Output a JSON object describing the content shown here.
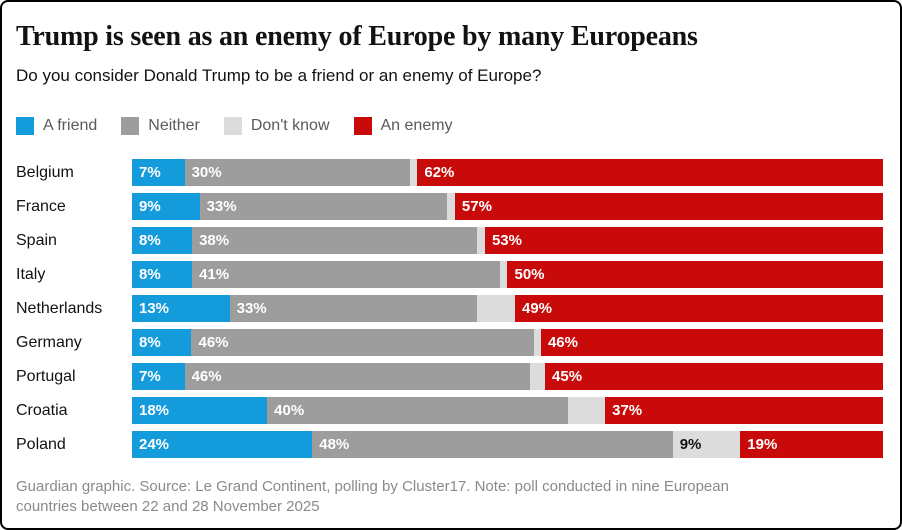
{
  "header": {
    "title": "Trump is seen as an enemy of Europe by many Europeans",
    "subtitle": "Do you consider Donald Trump to be a friend or an enemy of Europe?"
  },
  "chart_data": {
    "type": "bar",
    "variant": "horizontal-stacked",
    "unit": "%",
    "xlim": [
      0,
      100
    ],
    "grid": false,
    "legend_position": "top",
    "categories": [
      "Belgium",
      "France",
      "Spain",
      "Italy",
      "Netherlands",
      "Germany",
      "Portugal",
      "Croatia",
      "Poland"
    ],
    "series": [
      {
        "key": "friend",
        "name": "A friend",
        "color": "#149bdb",
        "label_color": "#ffffff",
        "values": [
          7,
          9,
          8,
          8,
          13,
          8,
          7,
          18,
          24
        ],
        "labels": [
          "7%",
          "9%",
          "8%",
          "8%",
          "13%",
          "8%",
          "7%",
          "18%",
          "24%"
        ]
      },
      {
        "key": "neither",
        "name": "Neither",
        "color": "#9d9d9d",
        "label_color": "#ffffff",
        "values": [
          30,
          33,
          38,
          41,
          33,
          46,
          46,
          40,
          48
        ],
        "labels": [
          "30%",
          "33%",
          "38%",
          "41%",
          "33%",
          "46%",
          "46%",
          "40%",
          "48%"
        ]
      },
      {
        "key": "dont-know",
        "name": "Don't know",
        "color": "#dcdcdc",
        "label_color": "#121212",
        "values": [
          1,
          1,
          1,
          1,
          5,
          1,
          2,
          5,
          9
        ],
        "labels": [
          "",
          "",
          "",
          "",
          "",
          "",
          "",
          "",
          "9%"
        ]
      },
      {
        "key": "enemy",
        "name": "An enemy",
        "color": "#c90a0a",
        "label_color": "#ffffff",
        "values": [
          62,
          57,
          53,
          50,
          49,
          46,
          45,
          37,
          19
        ],
        "labels": [
          "62%",
          "57%",
          "53%",
          "50%",
          "49%",
          "46%",
          "45%",
          "37%",
          "19%"
        ]
      }
    ]
  },
  "footer": {
    "lines": [
      "Guardian graphic. Source: Le Grand Continent, polling by Cluster17. Note: poll conducted in nine European",
      "countries between 22 and 28 November 2025"
    ]
  }
}
